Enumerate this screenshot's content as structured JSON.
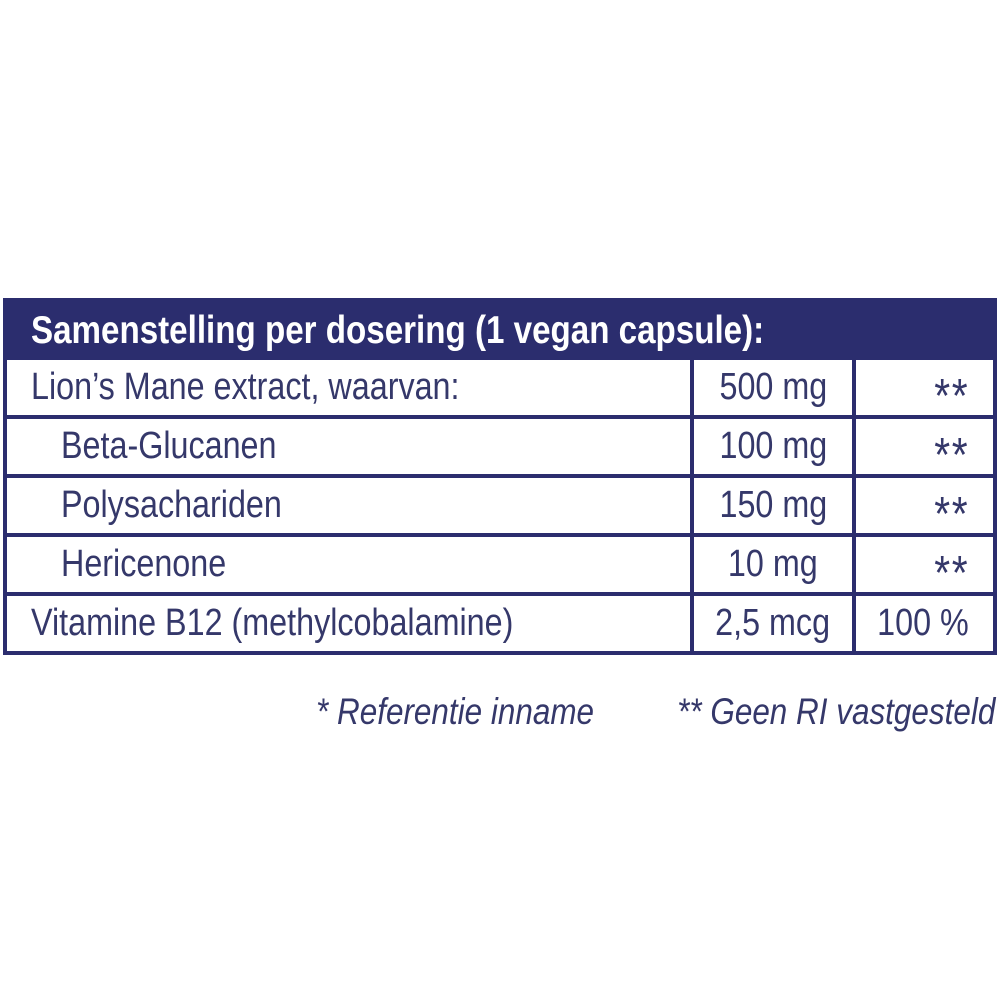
{
  "colors": {
    "navy": "#2b2d6e",
    "text": "#35386a",
    "header_text": "#ffffff",
    "background": "#ffffff"
  },
  "table": {
    "header": "Samenstelling per dosering (1 vegan capsule):",
    "rows": [
      {
        "name": "Lion’s Mane extract, waarvan:",
        "amount": "500 mg",
        "ri": "**"
      },
      {
        "name": "Beta-Glucanen",
        "amount": "100 mg",
        "ri": "**"
      },
      {
        "name": "Polysachariden",
        "amount": "150 mg",
        "ri": "**"
      },
      {
        "name": "Hericenone",
        "amount": "10 mg",
        "ri": "**"
      },
      {
        "name": "Vitamine B12 (methylcobalamine)",
        "amount": "2,5 mcg",
        "ri": "100 %"
      }
    ]
  },
  "footnotes": {
    "reference_intake": "* Referentie inname",
    "no_ri_established": "** Geen RI vastgesteld"
  }
}
